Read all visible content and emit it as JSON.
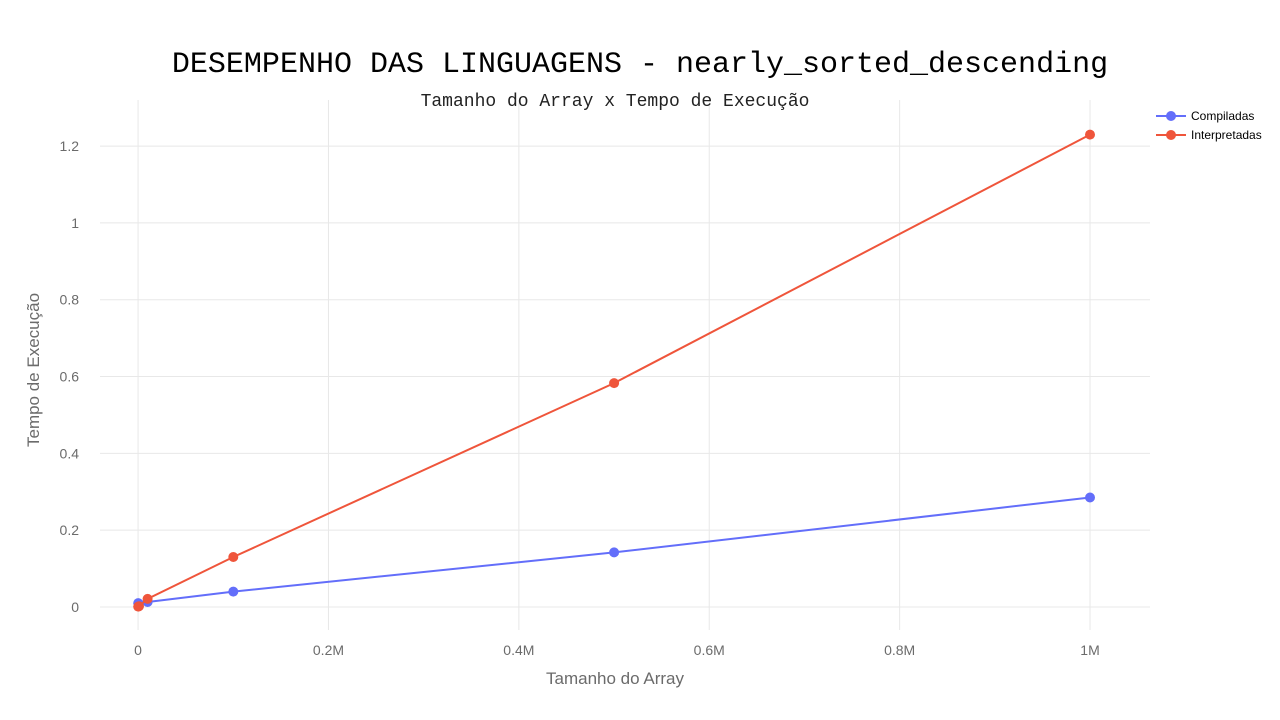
{
  "chart_data": {
    "type": "line",
    "title": "DESEMPENHO DAS LINGUAGENS - nearly_sorted_descending",
    "subtitle": "Tamanho do Array x Tempo de Execução",
    "xlabel": "Tamanho do Array",
    "ylabel": "Tempo de Execução",
    "xlim": [
      -40000,
      1063000
    ],
    "ylim": [
      -0.06,
      1.32
    ],
    "grid": true,
    "legend_position": "top-right",
    "x_ticks": [
      {
        "value": 0,
        "label": "0"
      },
      {
        "value": 200000,
        "label": "0.2M"
      },
      {
        "value": 400000,
        "label": "0.4M"
      },
      {
        "value": 600000,
        "label": "0.6M"
      },
      {
        "value": 800000,
        "label": "0.8M"
      },
      {
        "value": 1000000,
        "label": "1M"
      }
    ],
    "y_ticks": [
      {
        "value": 0,
        "label": "0"
      },
      {
        "value": 0.2,
        "label": "0.2"
      },
      {
        "value": 0.4,
        "label": "0.4"
      },
      {
        "value": 0.6,
        "label": "0.6"
      },
      {
        "value": 0.8,
        "label": "0.8"
      },
      {
        "value": 1,
        "label": "1"
      },
      {
        "value": 1.2,
        "label": "1.2"
      }
    ],
    "series": [
      {
        "name": "Compiladas",
        "color": "#636efa",
        "points": [
          {
            "x": 100,
            "y": 0.01
          },
          {
            "x": 1000,
            "y": 0.008
          },
          {
            "x": 10000,
            "y": 0.013
          },
          {
            "x": 100000,
            "y": 0.04
          },
          {
            "x": 500000,
            "y": 0.142
          },
          {
            "x": 1000000,
            "y": 0.285
          }
        ]
      },
      {
        "name": "Interpretadas",
        "color": "#ef553b",
        "points": [
          {
            "x": 100,
            "y": 0.001
          },
          {
            "x": 1000,
            "y": 0.002
          },
          {
            "x": 10000,
            "y": 0.021
          },
          {
            "x": 100000,
            "y": 0.13
          },
          {
            "x": 500000,
            "y": 0.583
          },
          {
            "x": 1000000,
            "y": 1.23
          }
        ]
      }
    ]
  }
}
